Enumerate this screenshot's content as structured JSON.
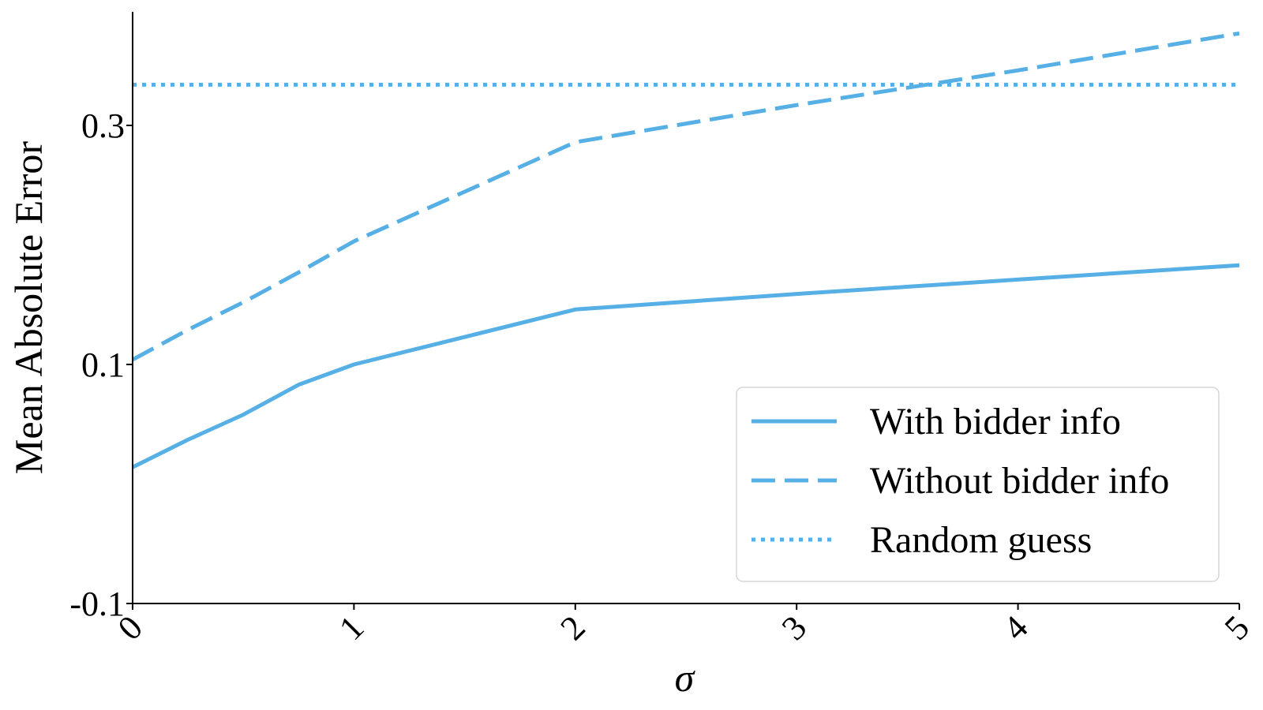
{
  "chart_data": {
    "type": "line",
    "title": "",
    "xlabel": "σ",
    "ylabel": "Mean Absolute Error",
    "xlim": [
      0,
      5
    ],
    "ylim": [
      -0.1,
      0.395
    ],
    "x_ticks": [
      {
        "value": 0,
        "label": "0"
      },
      {
        "value": 1,
        "label": "1"
      },
      {
        "value": 2,
        "label": "2"
      },
      {
        "value": 3,
        "label": "3"
      },
      {
        "value": 4,
        "label": "4"
      },
      {
        "value": 5,
        "label": "5"
      }
    ],
    "y_ticks": [
      {
        "value": -0.1,
        "label": "-0.1"
      },
      {
        "value": 0.1,
        "label": "0.1"
      },
      {
        "value": 0.3,
        "label": "0.3"
      }
    ],
    "grid": false,
    "legend_position": "bottom-right",
    "series_color": "#56b0e5",
    "series": [
      {
        "name": "With bidder info",
        "style": "solid",
        "x": [
          0,
          0.25,
          0.5,
          0.75,
          1,
          2,
          3,
          4,
          5
        ],
        "y": [
          0.014,
          0.037,
          0.058,
          0.083,
          0.1,
          0.146,
          0.159,
          0.171,
          0.183
        ]
      },
      {
        "name": "Without bidder info",
        "style": "dashed",
        "x": [
          0,
          0.25,
          0.5,
          0.75,
          1,
          2,
          3,
          4,
          5
        ],
        "y": [
          0.104,
          0.129,
          0.152,
          0.177,
          0.203,
          0.286,
          0.317,
          0.346,
          0.377
        ]
      },
      {
        "name": "Random guess",
        "style": "dotted",
        "x": [
          0,
          5
        ],
        "y": [
          0.334,
          0.334
        ]
      }
    ]
  }
}
